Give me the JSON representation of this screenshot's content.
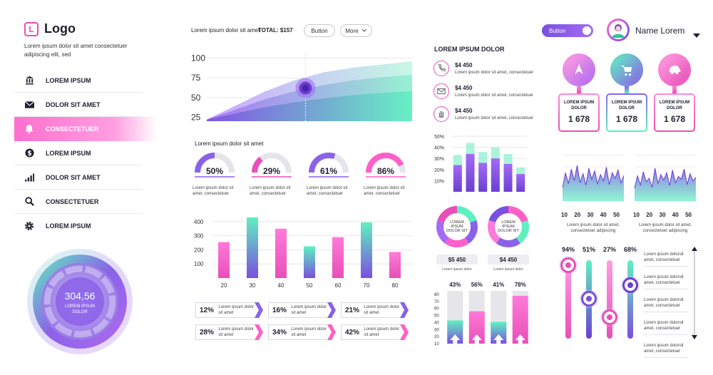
{
  "sidebar": {
    "logo_letter": "L",
    "logo_text": "Logo",
    "description": "Lorem ipsum dolor sit amet consectetuer adipiscing elit, sed",
    "items": [
      {
        "label": "LOREM IPSUM",
        "icon": "bank-icon"
      },
      {
        "label": "DOLOR SIT AMET",
        "icon": "mail-icon"
      },
      {
        "label": "CONSECTETUER",
        "icon": "bell-icon"
      },
      {
        "label": "LOREM IPSUM",
        "icon": "dollar-icon"
      },
      {
        "label": "DOLOR SIT AMET",
        "icon": "bar-chart-icon"
      },
      {
        "label": "CONSECTETUER",
        "icon": "search-icon"
      },
      {
        "label": "LOREM IPSUM",
        "icon": "gear-icon"
      }
    ],
    "active_index": 2,
    "gauge": {
      "value": "304,56",
      "label": "LOREM IPSUM DOLOR"
    }
  },
  "header": {
    "summary_label": "Lorem ipsum dolor sit amet",
    "total_label": "TOTAL:",
    "total_value": "$157",
    "button_label": "Button",
    "more_label": "More",
    "toggle_label": "Button",
    "user_name": "Name Lorem"
  },
  "area_chart": {
    "chart_data": {
      "type": "area",
      "y_ticks": [
        "100",
        "75",
        "50",
        "25"
      ],
      "ylim": [
        20,
        105
      ],
      "series": [
        {
          "values": [
            22,
            40,
            58,
            72,
            82,
            88,
            92,
            96
          ]
        },
        {
          "values": [
            22,
            35,
            48,
            58,
            66,
            72,
            76,
            79
          ]
        },
        {
          "values": [
            22,
            30,
            38,
            44,
            49,
            53,
            56,
            58
          ]
        }
      ],
      "highlight_index": 3,
      "highlight_value": 62
    },
    "caption": "Lorem ipsum dolor sit amet"
  },
  "donut_gauges": [
    {
      "pct": "50%",
      "fraction": 0.5,
      "text": "Lorem ipsum dolor sit amet, consectetuer",
      "color": "#8a62e8"
    },
    {
      "pct": "29%",
      "fraction": 0.29,
      "text": "Lorem ipsum dolor sit amet, consectetuer",
      "color": "#e84fb8"
    },
    {
      "pct": "61%",
      "fraction": 0.61,
      "text": "Lorem ipsum dolor sit amet, consectetuer",
      "color": "#8a62e8"
    },
    {
      "pct": "86%",
      "fraction": 0.86,
      "text": "Lorem ipsum dolor sit amet, consectetuer",
      "color": "#ff5fc8"
    }
  ],
  "bar_chart": {
    "chart_data": {
      "type": "bar",
      "categories": [
        "20",
        "30",
        "40",
        "50",
        "60",
        "70",
        "80"
      ],
      "values": [
        255,
        430,
        350,
        225,
        290,
        395,
        185
      ],
      "y_ticks": [
        "400",
        "300",
        "200",
        "100"
      ],
      "ylim": [
        0,
        460
      ],
      "colors": [
        "pink",
        "purple",
        "pink",
        "purple",
        "pink",
        "purple",
        "pink"
      ]
    }
  },
  "arrow_stats": [
    {
      "pct": "12%",
      "text": "Lorem ipsum dolor sit amet"
    },
    {
      "pct": "16%",
      "text": "Lorem ipsum dolor sit amet"
    },
    {
      "pct": "21%",
      "text": "Lorem ipsum dolor sit amet"
    },
    {
      "pct": "28%",
      "text": "Lorem ipsum dolor sit amet"
    },
    {
      "pct": "34%",
      "text": "Lorem ipsum dolor sit amet"
    },
    {
      "pct": "42%",
      "text": "Lorem ipsum dolor sit amet"
    }
  ],
  "contacts": {
    "title": "LOREM IPSUM DOLOR",
    "items": [
      {
        "amount": "$4 450",
        "text": "Lorem ipsum dolor sit amet, consectetuer",
        "icon": "phone-icon"
      },
      {
        "amount": "$4 450",
        "text": "Lorem ipsum dolor sit amet, consectetuer",
        "icon": "mail-icon"
      },
      {
        "amount": "$4 450",
        "text": "Lorem ipsum dolor sit amet, consectetuer",
        "icon": "hand-icon"
      }
    ]
  },
  "stacked_bars": {
    "chart_data": {
      "type": "bar",
      "y_ticks": [
        "50%",
        "40%",
        "30%",
        "20%",
        "10%"
      ],
      "ylim": [
        0,
        50
      ],
      "series": [
        {
          "values": [
            33,
            44,
            36,
            40,
            34,
            22
          ]
        },
        {
          "values": [
            24,
            34,
            26,
            30,
            25,
            16
          ]
        }
      ]
    }
  },
  "rings": [
    {
      "label": "LOREM IPSUM DOLOR SIT",
      "amount": "$5 450",
      "caption": "Lorem ipsum dolor"
    },
    {
      "label": "LOREM IPSUM DOLOR SIT",
      "amount": "$4 450",
      "caption": "Lorem ipsum dolor"
    }
  ],
  "column_bars": {
    "chart_data": {
      "type": "bar",
      "y_ticks": [
        "80",
        "70",
        "60",
        "50",
        "40",
        "30",
        "20",
        "10"
      ],
      "ylim": [
        10,
        85
      ],
      "percents": [
        "43%",
        "56%",
        "41%",
        "78%"
      ],
      "values": [
        43,
        56,
        41,
        78
      ],
      "colors": [
        "purple",
        "pink",
        "purple",
        "pink"
      ]
    }
  },
  "cards": [
    {
      "label": "LOREM IPSUM DOLOR",
      "value": "1 678",
      "icon": "rocket-icon"
    },
    {
      "label": "LOREM IPSUM DOLOR",
      "value": "1 678",
      "icon": "cart-icon"
    },
    {
      "label": "LOREM IPSUM DOLOR",
      "value": "1 678",
      "icon": "piggy-bank-icon"
    }
  ],
  "spark_charts": [
    {
      "chart_data": {
        "type": "area",
        "x_ticks": [
          "10",
          "20",
          "30",
          "40",
          "50"
        ],
        "values": [
          30,
          62,
          38,
          70,
          45,
          78,
          40,
          60,
          35,
          72,
          48,
          66,
          38,
          58,
          44,
          74,
          36,
          62,
          50,
          68,
          40,
          56
        ]
      },
      "caption": "Lorem ipsum dolor sit amet, consectetuer adipiscing"
    },
    {
      "chart_data": {
        "type": "area",
        "x_ticks": [
          "10",
          "20",
          "30",
          "40",
          "50"
        ],
        "values": [
          28,
          55,
          35,
          64,
          42,
          50,
          30,
          72,
          38,
          58,
          46,
          62,
          34,
          68,
          40,
          54,
          48,
          70,
          36,
          60,
          44,
          52
        ]
      },
      "caption": "Lorem ipsum dolor sit amet, consectetuer adipiscing"
    }
  ],
  "sliders": [
    {
      "pct": "94%",
      "value": 0.94,
      "color": "pink"
    },
    {
      "pct": "51%",
      "value": 0.51,
      "color": "purple"
    },
    {
      "pct": "27%",
      "value": 0.27,
      "color": "pink"
    },
    {
      "pct": "68%",
      "value": 0.68,
      "color": "green"
    }
  ],
  "side_list": [
    "Lorem ipsum dolorsit amet, consectetuer",
    "Lorem ipsum dolorsit amet, consectetuer",
    "Lorem ipsum dolorsit amet, consectetuer",
    "Lorem ipsum dolorsit amet, consectetuer",
    "Lorem ipsum dolorsit amet, consectetuer"
  ]
}
